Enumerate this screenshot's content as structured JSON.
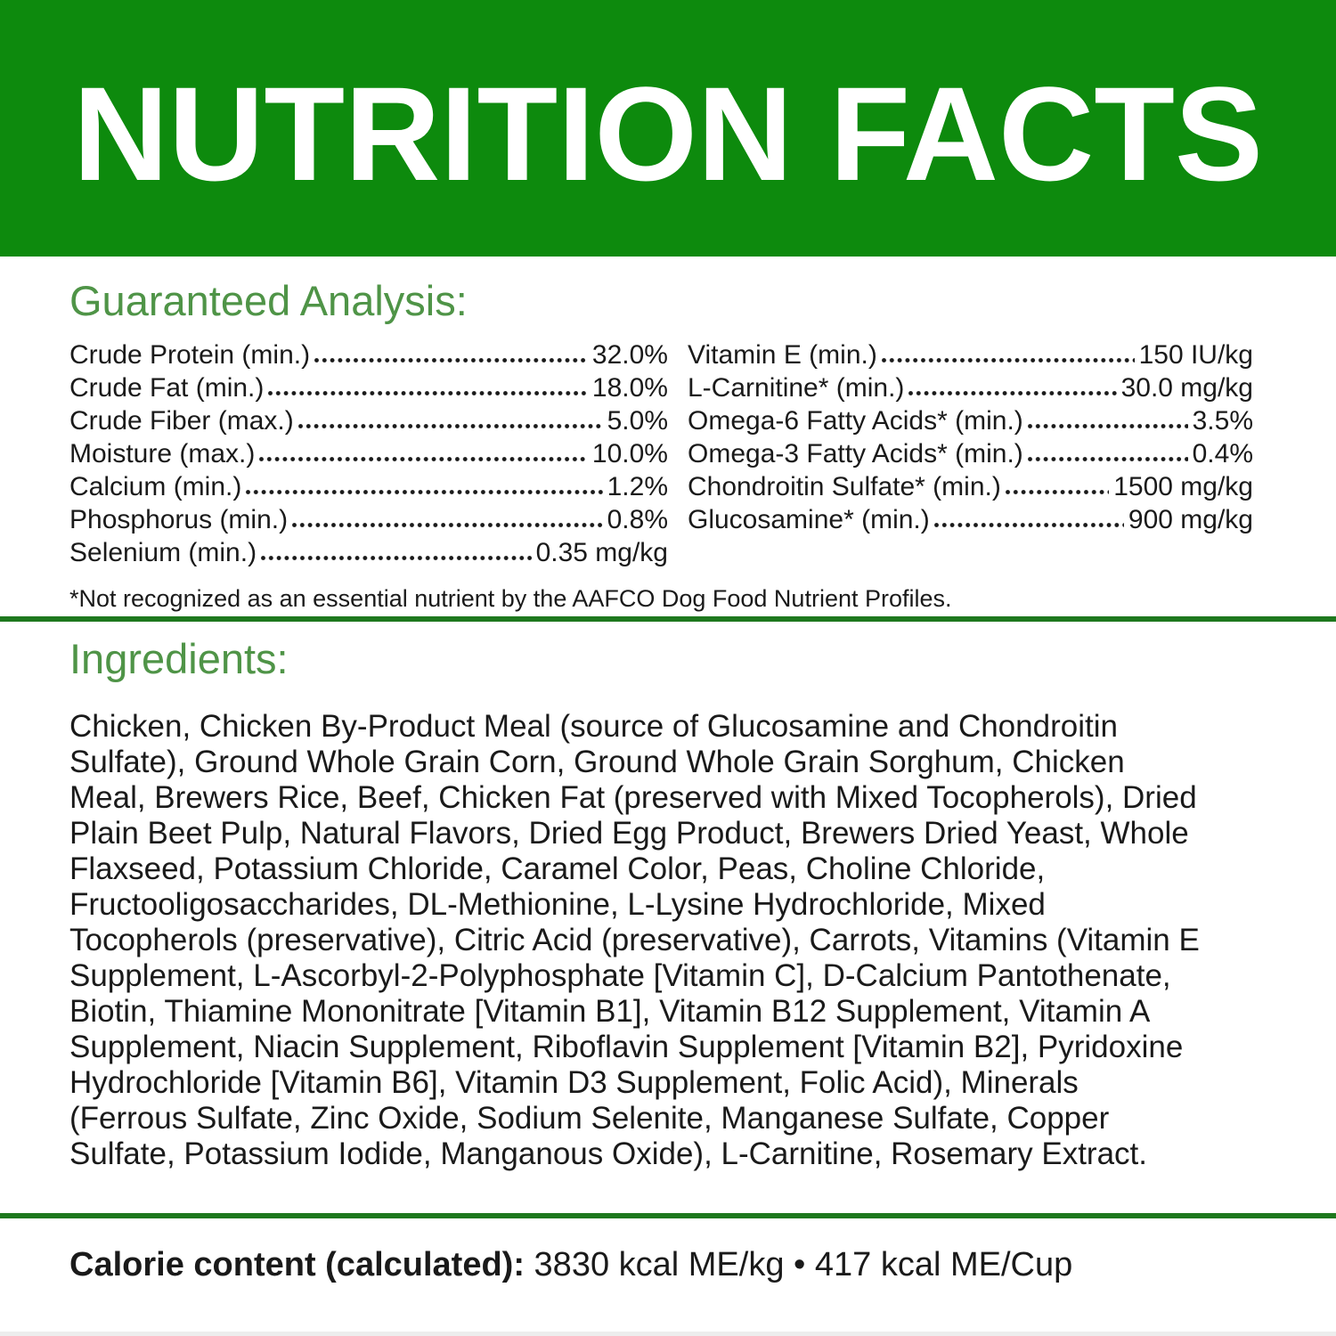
{
  "header": {
    "title": "NUTRITION FACTS"
  },
  "colors": {
    "brand_green": "#0d8a0d",
    "heading_green": "#4f9447",
    "divider_green": "#1e781e",
    "text": "#1a1a1a"
  },
  "guaranteed_analysis": {
    "heading": "Guaranteed Analysis:",
    "left": [
      {
        "label": "Crude Protein (min.)",
        "value": "32.0%"
      },
      {
        "label": "Crude Fat (min.)",
        "value": "18.0%"
      },
      {
        "label": "Crude Fiber (max.)",
        "value": "5.0%"
      },
      {
        "label": "Moisture (max.)",
        "value": "10.0%"
      },
      {
        "label": "Calcium (min.)",
        "value": "1.2%"
      },
      {
        "label": "Phosphorus (min.)",
        "value": "0.8%"
      },
      {
        "label": "Selenium (min.)",
        "value": "0.35 mg/kg"
      }
    ],
    "right": [
      {
        "label": "Vitamin E (min.)",
        "value": "150 IU/kg"
      },
      {
        "label": "L-Carnitine* (min.)",
        "value": "30.0 mg/kg"
      },
      {
        "label": "Omega-6 Fatty Acids* (min.)",
        "value": "3.5%"
      },
      {
        "label": "Omega-3 Fatty Acids* (min.)",
        "value": "0.4%"
      },
      {
        "label": "Chondroitin Sulfate* (min.)",
        "value": "1500 mg/kg"
      },
      {
        "label": "Glucosamine* (min.)",
        "value": "900 mg/kg"
      }
    ],
    "footnote": "*Not recognized as an essential nutrient by the AAFCO Dog Food Nutrient Profiles."
  },
  "ingredients": {
    "heading": "Ingredients:",
    "lines": [
      "Chicken, Chicken By-Product Meal (source of Glucosamine and Chondroitin",
      "Sulfate), Ground Whole Grain Corn, Ground Whole Grain Sorghum, Chicken",
      "Meal, Brewers Rice, Beef, Chicken Fat (preserved with Mixed Tocopherols), Dried",
      "Plain Beet Pulp, Natural Flavors, Dried Egg Product, Brewers Dried Yeast, Whole",
      "Flaxseed, Potassium Chloride, Caramel Color, Peas, Choline Chloride,",
      "Fructooligosaccharides, DL-Methionine, L-Lysine Hydrochloride, Mixed",
      "Tocopherols (preservative), Citric Acid (preservative), Carrots, Vitamins (Vitamin E",
      "Supplement, L-Ascorbyl-2-Polyphosphate [Vitamin C], D-Calcium Pantothenate,",
      "Biotin, Thiamine Mononitrate [Vitamin B1], Vitamin B12 Supplement, Vitamin A",
      "Supplement, Niacin Supplement, Riboflavin Supplement [Vitamin B2], Pyridoxine",
      "Hydrochloride [Vitamin B6], Vitamin D3 Supplement, Folic Acid), Minerals",
      "(Ferrous Sulfate, Zinc Oxide, Sodium Selenite, Manganese Sulfate, Copper",
      "Sulfate, Potassium Iodide, Manganous Oxide), L-Carnitine, Rosemary Extract."
    ]
  },
  "calorie": {
    "label": "Calorie content (calculated):",
    "value": "3830 kcal ME/kg • 417 kcal ME/Cup"
  }
}
